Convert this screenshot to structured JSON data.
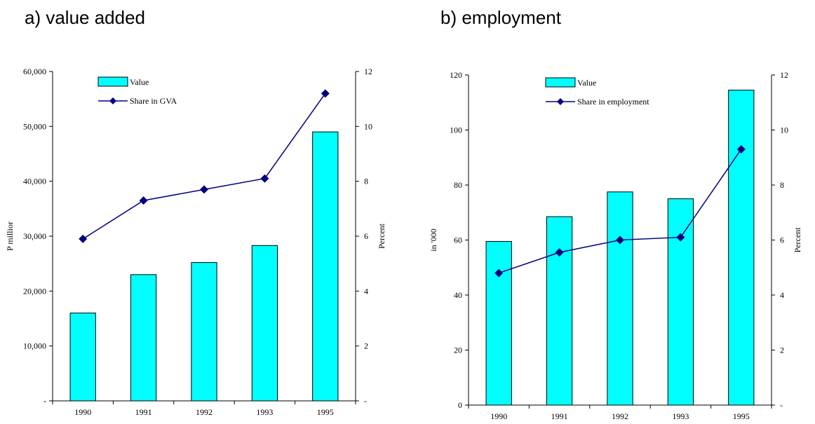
{
  "panel_titles": {
    "a": "a) value added",
    "b": "b) employment"
  },
  "colors": {
    "bar_fill": "#00FFFF",
    "bar_stroke": "#000000",
    "line": "#000080",
    "marker": "#000080"
  },
  "chart_data": [
    {
      "type": "bar",
      "title": "a) value added",
      "categories": [
        "1990",
        "1991",
        "1992",
        "1993",
        "1995"
      ],
      "y_left": {
        "label": "P millior",
        "ylim": [
          0,
          60000
        ],
        "ticks": [
          "-",
          "10,000",
          "20,000",
          "30,000",
          "40,000",
          "50,000",
          "60,000"
        ]
      },
      "y_right": {
        "label": "Percent",
        "ylim": [
          0,
          12
        ],
        "ticks": [
          "-",
          "2",
          "4",
          "6",
          "8",
          "10",
          "12"
        ]
      },
      "series": [
        {
          "name": "Value",
          "kind": "bar",
          "axis": "left",
          "values": [
            16000,
            23000,
            25200,
            28300,
            49000
          ]
        },
        {
          "name": "Share in GVA",
          "kind": "line",
          "axis": "right",
          "values": [
            5.9,
            7.3,
            7.7,
            8.1,
            11.2
          ]
        }
      ],
      "legend": "top-left",
      "grid": false
    },
    {
      "type": "bar",
      "title": "b) employment",
      "categories": [
        "1990",
        "1991",
        "1992",
        "1993",
        "1995"
      ],
      "y_left": {
        "label": "in '000",
        "ylim": [
          0,
          120
        ],
        "ticks": [
          "0",
          "20",
          "40",
          "60",
          "80",
          "100",
          "120"
        ]
      },
      "y_right": {
        "label": "Percent",
        "ylim": [
          0,
          12
        ],
        "ticks": [
          "-",
          "2",
          "4",
          "6",
          "8",
          "10",
          "12"
        ]
      },
      "series": [
        {
          "name": "Value",
          "kind": "bar",
          "axis": "left",
          "values": [
            59.5,
            68.5,
            77.5,
            75,
            114.5
          ]
        },
        {
          "name": "Share in employment",
          "kind": "line",
          "axis": "right",
          "values": [
            4.8,
            5.55,
            6.0,
            6.1,
            9.3
          ]
        }
      ],
      "legend": "top-left",
      "grid": false
    }
  ]
}
